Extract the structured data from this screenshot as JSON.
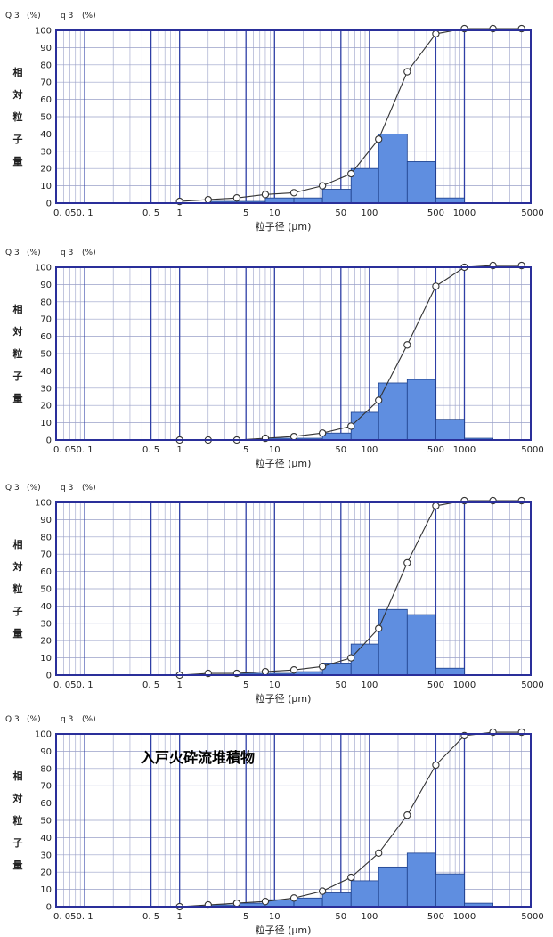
{
  "colors": {
    "frame": "#2a2f9a",
    "major_grid": "#2f3fa6",
    "minor_grid": "#9aa0c8",
    "bar_fill": "#5f8ee0",
    "bar_stroke": "#1d3f8a",
    "line": "#333333"
  },
  "chart_data": [
    {
      "type": "bar+line",
      "header_q": "Q 3",
      "header_q_unit": "(%)",
      "header_qd": "q 3",
      "header_qd_unit": "(%)",
      "ylabel_chars": [
        "相",
        "対",
        "粒",
        "子",
        "量"
      ],
      "xlabel": "粒子径 (μm)",
      "annotation": "",
      "y_ticks": [
        "0",
        "10",
        "20",
        "30",
        "40",
        "50",
        "60",
        "70",
        "80",
        "90",
        "100"
      ],
      "x_ticks": [
        "0. 05",
        "0. 1",
        "0. 5",
        "1",
        "5",
        "10",
        "50",
        "100",
        "500",
        "1000",
        "5000"
      ],
      "x_scale": "log",
      "xlim": [
        0.05,
        5000
      ],
      "ylim": [
        0,
        100
      ],
      "histogram": {
        "name": "q3",
        "bins": [
          [
            0.5,
            1,
            0
          ],
          [
            1,
            2,
            0
          ],
          [
            2,
            4,
            1
          ],
          [
            4,
            8,
            1
          ],
          [
            8,
            16,
            3
          ],
          [
            16,
            32,
            3
          ],
          [
            32,
            64,
            8
          ],
          [
            64,
            125,
            20
          ],
          [
            125,
            250,
            40
          ],
          [
            250,
            500,
            24
          ],
          [
            500,
            1000,
            3
          ],
          [
            1000,
            2000,
            0
          ]
        ]
      },
      "cumulative": {
        "name": "Q3",
        "points": [
          [
            1,
            1
          ],
          [
            2,
            2
          ],
          [
            4,
            3
          ],
          [
            8,
            5
          ],
          [
            16,
            6
          ],
          [
            32,
            10
          ],
          [
            64,
            17
          ],
          [
            125,
            37
          ],
          [
            250,
            76
          ],
          [
            500,
            98
          ],
          [
            1000,
            101
          ],
          [
            2000,
            101
          ],
          [
            4000,
            101
          ]
        ]
      }
    },
    {
      "type": "bar+line",
      "header_q": "Q 3",
      "header_q_unit": "(%)",
      "header_qd": "q 3",
      "header_qd_unit": "(%)",
      "ylabel_chars": [
        "相",
        "対",
        "粒",
        "子",
        "量"
      ],
      "xlabel": "粒子径 (μm)",
      "annotation": "",
      "y_ticks": [
        "0",
        "10",
        "20",
        "30",
        "40",
        "50",
        "60",
        "70",
        "80",
        "90",
        "100"
      ],
      "x_ticks": [
        "0. 05",
        "0. 1",
        "0. 5",
        "1",
        "5",
        "10",
        "50",
        "100",
        "500",
        "1000",
        "5000"
      ],
      "x_scale": "log",
      "xlim": [
        0.05,
        5000
      ],
      "ylim": [
        0,
        100
      ],
      "histogram": {
        "name": "q3",
        "bins": [
          [
            0.5,
            1,
            0
          ],
          [
            1,
            2,
            0
          ],
          [
            2,
            4,
            0
          ],
          [
            4,
            8,
            0
          ],
          [
            8,
            16,
            1
          ],
          [
            16,
            32,
            1
          ],
          [
            32,
            64,
            4
          ],
          [
            64,
            125,
            16
          ],
          [
            125,
            250,
            33
          ],
          [
            250,
            500,
            35
          ],
          [
            500,
            1000,
            12
          ],
          [
            1000,
            2000,
            1
          ]
        ]
      },
      "cumulative": {
        "name": "Q3",
        "points": [
          [
            1,
            0
          ],
          [
            2,
            0
          ],
          [
            4,
            0
          ],
          [
            8,
            1
          ],
          [
            16,
            2
          ],
          [
            32,
            4
          ],
          [
            64,
            8
          ],
          [
            125,
            23
          ],
          [
            250,
            55
          ],
          [
            500,
            89
          ],
          [
            1000,
            100
          ],
          [
            2000,
            101
          ],
          [
            4000,
            101
          ]
        ]
      }
    },
    {
      "type": "bar+line",
      "header_q": "Q 3",
      "header_q_unit": "(%)",
      "header_qd": "q 3",
      "header_qd_unit": "(%)",
      "ylabel_chars": [
        "相",
        "対",
        "粒",
        "子",
        "量"
      ],
      "xlabel": "粒子径 (μm)",
      "annotation": "",
      "y_ticks": [
        "0",
        "10",
        "20",
        "30",
        "40",
        "50",
        "60",
        "70",
        "80",
        "90",
        "100"
      ],
      "x_ticks": [
        "0. 05",
        "0. 1",
        "0. 5",
        "1",
        "5",
        "10",
        "50",
        "100",
        "500",
        "1000",
        "5000"
      ],
      "x_scale": "log",
      "xlim": [
        0.05,
        5000
      ],
      "ylim": [
        0,
        100
      ],
      "histogram": {
        "name": "q3",
        "bins": [
          [
            0.5,
            1,
            0
          ],
          [
            1,
            2,
            0
          ],
          [
            2,
            4,
            0
          ],
          [
            4,
            8,
            1
          ],
          [
            8,
            16,
            1
          ],
          [
            16,
            32,
            2
          ],
          [
            32,
            64,
            7
          ],
          [
            64,
            125,
            18
          ],
          [
            125,
            250,
            38
          ],
          [
            250,
            500,
            35
          ],
          [
            500,
            1000,
            4
          ],
          [
            1000,
            2000,
            0
          ]
        ]
      },
      "cumulative": {
        "name": "Q3",
        "points": [
          [
            1,
            0
          ],
          [
            2,
            1
          ],
          [
            4,
            1
          ],
          [
            8,
            2
          ],
          [
            16,
            3
          ],
          [
            32,
            5
          ],
          [
            64,
            10
          ],
          [
            125,
            27
          ],
          [
            250,
            65
          ],
          [
            500,
            98
          ],
          [
            1000,
            101
          ],
          [
            2000,
            101
          ],
          [
            4000,
            101
          ]
        ]
      }
    },
    {
      "type": "bar+line",
      "header_q": "Q 3",
      "header_q_unit": "(%)",
      "header_qd": "q 3",
      "header_qd_unit": "(%)",
      "ylabel_chars": [
        "相",
        "対",
        "粒",
        "子",
        "量"
      ],
      "xlabel": "粒子径 (μm)",
      "annotation": "入戸火砕流堆積物",
      "y_ticks": [
        "0",
        "10",
        "20",
        "30",
        "40",
        "50",
        "60",
        "70",
        "80",
        "90",
        "100"
      ],
      "x_ticks": [
        "0. 05",
        "0. 1",
        "0. 5",
        "1",
        "5",
        "10",
        "50",
        "100",
        "500",
        "1000",
        "5000"
      ],
      "x_scale": "log",
      "xlim": [
        0.05,
        5000
      ],
      "ylim": [
        0,
        100
      ],
      "histogram": {
        "name": "q3",
        "bins": [
          [
            0.5,
            1,
            0
          ],
          [
            1,
            2,
            0
          ],
          [
            2,
            4,
            1
          ],
          [
            4,
            8,
            2
          ],
          [
            8,
            16,
            4
          ],
          [
            16,
            32,
            5
          ],
          [
            32,
            64,
            8
          ],
          [
            64,
            125,
            15
          ],
          [
            125,
            250,
            23
          ],
          [
            250,
            500,
            31
          ],
          [
            500,
            1000,
            19
          ],
          [
            1000,
            2000,
            2
          ]
        ]
      },
      "cumulative": {
        "name": "Q3",
        "points": [
          [
            1,
            0
          ],
          [
            2,
            1
          ],
          [
            4,
            2
          ],
          [
            8,
            3
          ],
          [
            16,
            5
          ],
          [
            32,
            9
          ],
          [
            64,
            17
          ],
          [
            125,
            31
          ],
          [
            250,
            53
          ],
          [
            500,
            82
          ],
          [
            1000,
            99
          ],
          [
            2000,
            101
          ],
          [
            4000,
            101
          ]
        ]
      }
    }
  ]
}
